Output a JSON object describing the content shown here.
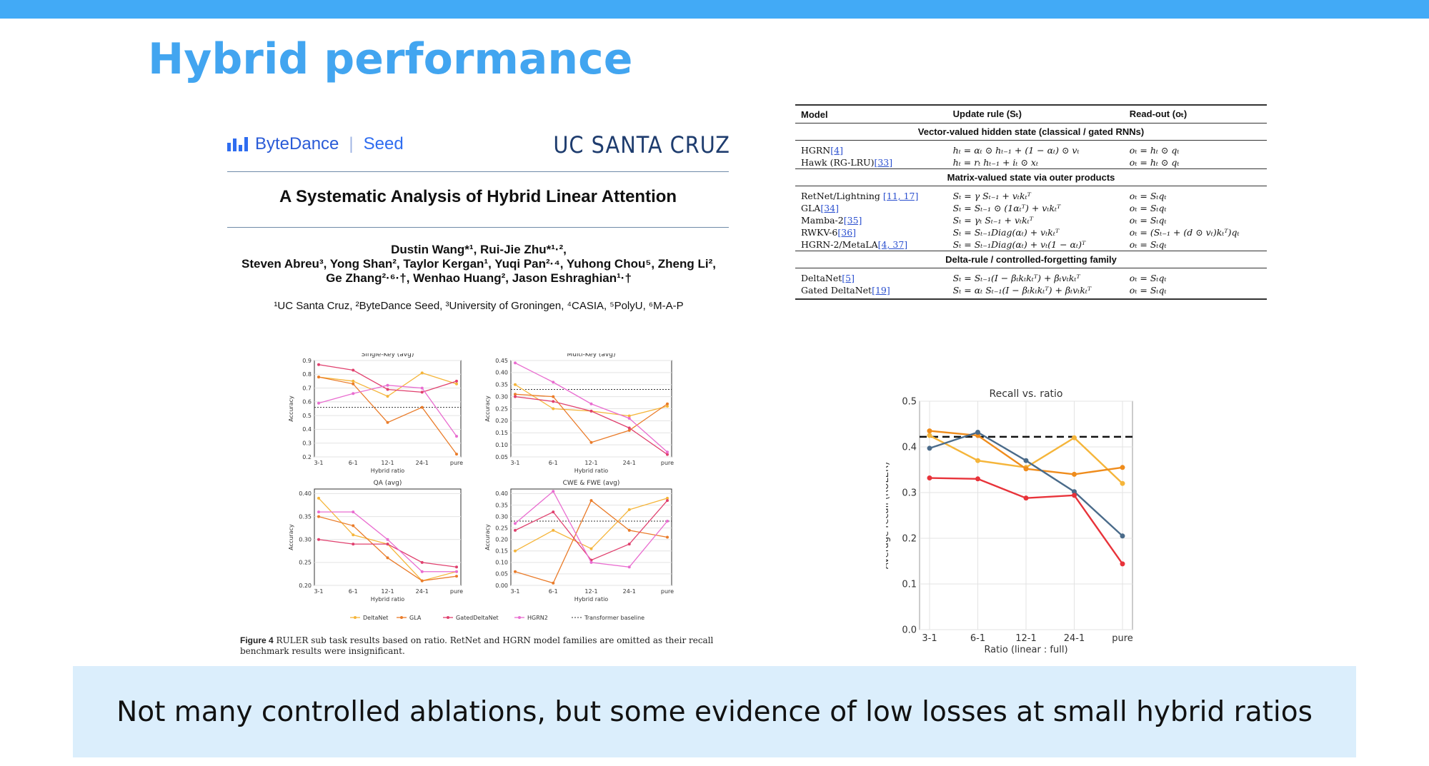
{
  "slide": {
    "title": "Hybrid performance",
    "takeaway": "Not many controlled ablations, but some evidence of low losses at small hybrid ratios",
    "accent": "#42aaf6",
    "banner_bg": "#dbeefc"
  },
  "paper": {
    "logo_left_name": "ByteDance",
    "logo_left_sub": "Seed",
    "logo_right": "UC SANTA CRUZ",
    "title": "A Systematic Analysis of Hybrid Linear Attention",
    "authors_line1": "Dustin Wang*¹, Rui-Jie Zhu*¹·²,",
    "authors_line2": "Steven Abreu³, Yong Shan², Taylor Kergan¹, Yuqi Pan²·⁴, Yuhong Chou⁵, Zheng Li²,",
    "authors_line3": "Ge Zhang²·⁶·†, Wenhao Huang², Jason Eshraghian¹·†",
    "affiliations": "¹UC Santa Cruz, ²ByteDance Seed, ³University of Groningen, ⁴CASIA, ⁵PolyU, ⁶M-A-P",
    "caption_label": "Figure 4",
    "caption_text": "RULER sub task results based on ratio. RetNet and HGRN model families are omitted as their recall benchmark results were insignificant."
  },
  "table": {
    "headers": [
      "Model",
      "Update rule (Sₜ)",
      "Read-out (oₜ)"
    ],
    "sections": [
      {
        "title": "Vector-valued hidden state (classical / gated RNNs)",
        "rows": [
          {
            "model": "HGRN",
            "ref": "[4]",
            "update": "hₜ = αₜ ⊙ hₜ₋₁ + (1 − αₜ) ⊙ vₜ",
            "readout": "oₜ = hₜ ⊙ qₜ"
          },
          {
            "model": "Hawk (RG-LRU)",
            "ref": "[33]",
            "update": "hₜ = rₜ hₜ₋₁ + iₜ ⊙ xₜ",
            "readout": "oₜ = hₜ ⊙ qₜ"
          }
        ]
      },
      {
        "title": "Matrix-valued state via outer products",
        "rows": [
          {
            "model": "RetNet/Lightning ",
            "ref": "[11, 17]",
            "update": "Sₜ = γ Sₜ₋₁ + vₜkₜᵀ",
            "readout": "oₜ = Sₜqₜ"
          },
          {
            "model": "GLA",
            "ref": "[34]",
            "update": "Sₜ = Sₜ₋₁ ⊙ (1αₜᵀ) + vₜkₜᵀ",
            "readout": "oₜ = Sₜqₜ"
          },
          {
            "model": "Mamba-2",
            "ref": "[35]",
            "update": "Sₜ = γₜ Sₜ₋₁ + vₜkₜᵀ",
            "readout": "oₜ = Sₜqₜ"
          },
          {
            "model": "RWKV-6",
            "ref": "[36]",
            "update": "Sₜ = Sₜ₋₁Diag(αₜ) + vₜkₜᵀ",
            "readout": "oₜ = (Sₜ₋₁ + (d ⊙ vₜ)kₜᵀ)qₜ"
          },
          {
            "model": "HGRN-2/MetaLA",
            "ref": "[4, 37]",
            "update": "Sₜ = Sₜ₋₁Diag(αₜ) + vₜ(1 − αₜ)ᵀ",
            "readout": "oₜ = Sₜqₜ"
          }
        ]
      },
      {
        "title": "Delta-rule / controlled-forgetting family",
        "rows": [
          {
            "model": "DeltaNet",
            "ref": "[5]",
            "update": "Sₜ = Sₜ₋₁(I − βₜkₜkₜᵀ) + βₜvₜkₜᵀ",
            "readout": "oₜ = Sₜqₜ"
          },
          {
            "model": "Gated DeltaNet",
            "ref": "[19]",
            "update": "Sₜ = αₜ Sₜ₋₁(I − βₜkₜkₜᵀ) + βₜvₜkₜᵀ",
            "readout": "oₜ = Sₜqₜ"
          }
        ]
      }
    ]
  },
  "chart_data": [
    {
      "type": "line",
      "title": "Single-Key (avg)",
      "xlabel": "Hybrid ratio",
      "ylabel": "Accuracy",
      "categories": [
        "3-1",
        "6-1",
        "12-1",
        "24-1",
        "pure"
      ],
      "yticks": [
        "0.2",
        "0.3",
        "0.4",
        "0.5",
        "0.6",
        "0.7",
        "0.8",
        "0.9"
      ],
      "ylim": [
        0.2,
        0.9
      ],
      "baseline": 0.56,
      "series": [
        {
          "name": "DeltaNet",
          "color": "#f5b53a",
          "values": [
            0.78,
            0.75,
            0.64,
            0.81,
            0.73
          ]
        },
        {
          "name": "GLA",
          "color": "#ea7c2a",
          "values": [
            0.78,
            0.73,
            0.45,
            0.56,
            0.22
          ]
        },
        {
          "name": "GatedDeltaNet",
          "color": "#e0406e",
          "values": [
            0.87,
            0.83,
            0.69,
            0.67,
            0.75
          ]
        },
        {
          "name": "HGRN2",
          "color": "#e96dd0",
          "values": [
            0.59,
            0.66,
            0.72,
            0.7,
            0.35
          ]
        }
      ]
    },
    {
      "type": "line",
      "title": "Multi-Key (avg)",
      "xlabel": "Hybrid ratio",
      "ylabel": "Accuracy",
      "categories": [
        "3-1",
        "6-1",
        "12-1",
        "24-1",
        "pure"
      ],
      "yticks": [
        "0.05",
        "0.10",
        "0.15",
        "0.20",
        "0.25",
        "0.30",
        "0.35",
        "0.40",
        "0.45"
      ],
      "ylim": [
        0.05,
        0.45
      ],
      "baseline": 0.33,
      "series": [
        {
          "name": "DeltaNet",
          "color": "#f5b53a",
          "values": [
            0.35,
            0.25,
            0.24,
            0.22,
            0.26
          ]
        },
        {
          "name": "GLA",
          "color": "#ea7c2a",
          "values": [
            0.31,
            0.3,
            0.11,
            0.16,
            0.27
          ]
        },
        {
          "name": "GatedDeltaNet",
          "color": "#e0406e",
          "values": [
            0.3,
            0.28,
            0.24,
            0.17,
            0.06
          ]
        },
        {
          "name": "HGRN2",
          "color": "#e96dd0",
          "values": [
            0.44,
            0.36,
            0.27,
            0.21,
            0.07
          ]
        }
      ]
    },
    {
      "type": "line",
      "title": "QA (avg)",
      "xlabel": "Hybrid ratio",
      "ylabel": "Accuracy",
      "categories": [
        "3-1",
        "6-1",
        "12-1",
        "24-1",
        "pure"
      ],
      "yticks": [
        "0.20",
        "0.25",
        "0.30",
        "0.35",
        "0.40"
      ],
      "ylim": [
        0.2,
        0.41
      ],
      "baseline": 0.41,
      "series": [
        {
          "name": "DeltaNet",
          "color": "#f5b53a",
          "values": [
            0.39,
            0.31,
            0.29,
            0.21,
            0.23
          ]
        },
        {
          "name": "GLA",
          "color": "#ea7c2a",
          "values": [
            0.35,
            0.33,
            0.26,
            0.21,
            0.22
          ]
        },
        {
          "name": "GatedDeltaNet",
          "color": "#e0406e",
          "values": [
            0.3,
            0.29,
            0.29,
            0.25,
            0.24
          ]
        },
        {
          "name": "HGRN2",
          "color": "#e96dd0",
          "values": [
            0.36,
            0.36,
            0.3,
            0.23,
            0.23
          ]
        }
      ]
    },
    {
      "type": "line",
      "title": "CWE & FWE (avg)",
      "xlabel": "Hybrid ratio",
      "ylabel": "Accuracy",
      "categories": [
        "3-1",
        "6-1",
        "12-1",
        "24-1",
        "pure"
      ],
      "yticks": [
        "0.00",
        "0.05",
        "0.10",
        "0.15",
        "0.20",
        "0.25",
        "0.30",
        "0.35",
        "0.40"
      ],
      "ylim": [
        0.0,
        0.42
      ],
      "baseline": 0.28,
      "series": [
        {
          "name": "DeltaNet",
          "color": "#f5b53a",
          "values": [
            0.15,
            0.24,
            0.16,
            0.33,
            0.38
          ]
        },
        {
          "name": "GLA",
          "color": "#ea7c2a",
          "values": [
            0.06,
            0.01,
            0.37,
            0.24,
            0.21
          ]
        },
        {
          "name": "GatedDeltaNet",
          "color": "#e0406e",
          "values": [
            0.24,
            0.32,
            0.11,
            0.18,
            0.37
          ]
        },
        {
          "name": "HGRN2",
          "color": "#e96dd0",
          "values": [
            0.27,
            0.41,
            0.1,
            0.08,
            0.28
          ]
        }
      ]
    },
    {
      "type": "line",
      "title": "Recall vs. ratio",
      "xlabel": "Ratio (linear : full)",
      "ylabel": "Average recall (RULER)",
      "categories": [
        "3-1",
        "6-1",
        "12-1",
        "24-1",
        "pure"
      ],
      "yticks": [
        "0.0",
        "0.1",
        "0.2",
        "0.3",
        "0.4",
        "0.5"
      ],
      "ylim": [
        0.0,
        0.5
      ],
      "baseline": 0.422,
      "series": [
        {
          "color": "#f5b53a",
          "values": [
            0.425,
            0.37,
            0.355,
            0.42,
            0.32
          ]
        },
        {
          "color": "#ef8c1c",
          "values": [
            0.435,
            0.425,
            0.352,
            0.34,
            0.355
          ]
        },
        {
          "color": "#4a6b8a",
          "values": [
            0.397,
            0.432,
            0.37,
            0.302,
            0.205
          ]
        },
        {
          "color": "#e8333a",
          "values": [
            0.332,
            0.33,
            0.288,
            0.294,
            0.144
          ]
        }
      ]
    }
  ],
  "legend": {
    "entries": [
      "DeltaNet",
      "GLA",
      "GatedDeltaNet",
      "HGRN2",
      "Transformer baseline"
    ],
    "colors": [
      "#f5b53a",
      "#ea7c2a",
      "#e0406e",
      "#e96dd0",
      "#333333"
    ]
  }
}
